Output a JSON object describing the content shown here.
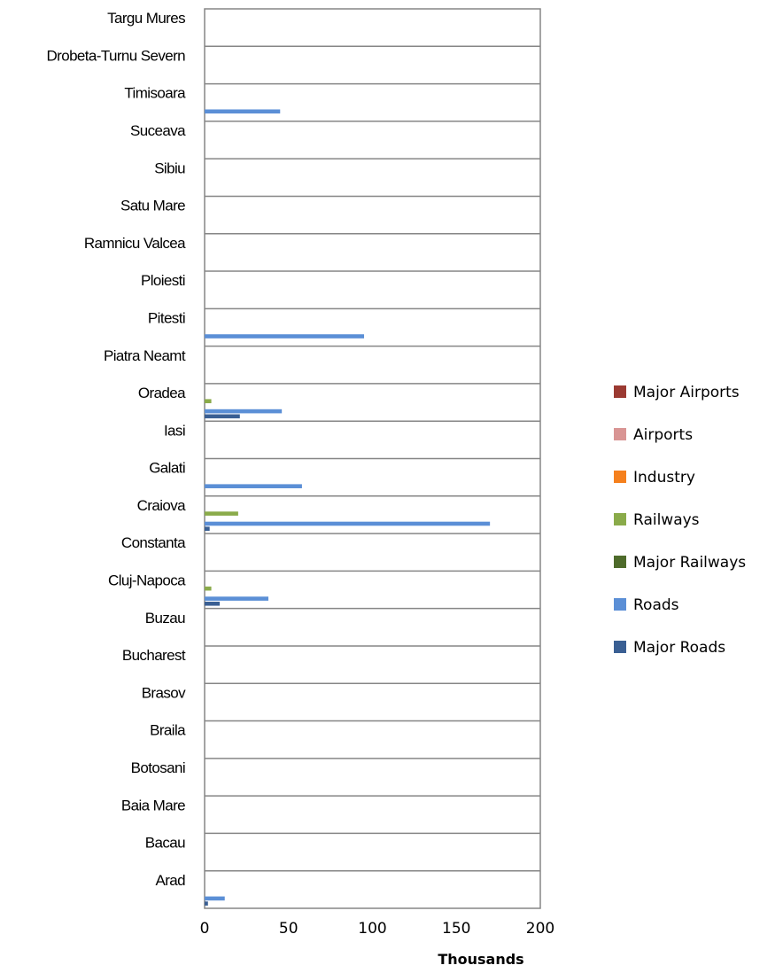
{
  "chart_data": {
    "type": "bar",
    "orientation": "horizontal",
    "title": "",
    "xlabel": "Thousands",
    "ylabel": "",
    "xlim": [
      0,
      200
    ],
    "x_ticks": [
      0,
      50,
      100,
      150,
      200
    ],
    "grid": "horizontal category separators",
    "legend_position": "right",
    "categories": [
      "Arad",
      "Bacau",
      "Baia Mare",
      "Botosani",
      "Braila",
      "Brasov",
      "Bucharest",
      "Buzau",
      "Cluj-Napoca",
      "Constanta",
      "Craiova",
      "Galati",
      "Iasi",
      "Oradea",
      "Piatra Neamt",
      "Pitesti",
      "Ploiesti",
      "Ramnicu Valcea",
      "Satu Mare",
      "Sibiu",
      "Suceava",
      "Timisoara",
      "Drobeta-Turnu Severn",
      "Targu Mures"
    ],
    "series": [
      {
        "name": "Major Roads",
        "color": "#3a5f93",
        "values": [
          2,
          0,
          0,
          0,
          0,
          0,
          0,
          0,
          9,
          0,
          3,
          0,
          0,
          21,
          0,
          0,
          0,
          0,
          0,
          0,
          0,
          0,
          0,
          0
        ]
      },
      {
        "name": "Roads",
        "color": "#5b8fd6",
        "values": [
          12,
          0,
          0,
          0,
          0,
          0,
          0,
          0,
          38,
          0,
          170,
          58,
          0,
          46,
          0,
          95,
          0,
          0,
          0,
          0,
          0,
          45,
          0,
          0
        ]
      },
      {
        "name": "Major Railways",
        "color": "#4e6b2b",
        "values": [
          0,
          0,
          0,
          0,
          0,
          0,
          0,
          0,
          0,
          0,
          0,
          0,
          0,
          0,
          0,
          0,
          0,
          0,
          0,
          0,
          0,
          0,
          0,
          0
        ]
      },
      {
        "name": "Railways",
        "color": "#8aab4a",
        "values": [
          0,
          0,
          0,
          0,
          0,
          0,
          0,
          0,
          4,
          0,
          20,
          0,
          0,
          4,
          0,
          0,
          0,
          0,
          0,
          0,
          0,
          0,
          0,
          0
        ]
      },
      {
        "name": "Industry",
        "color": "#f5801d",
        "values": [
          0,
          0,
          0,
          0,
          0,
          0,
          0,
          0,
          0,
          0,
          0,
          0,
          0,
          0,
          0,
          0,
          0,
          0,
          0,
          0,
          0,
          0,
          0,
          0
        ]
      },
      {
        "name": "Airports",
        "color": "#d99594",
        "values": [
          0,
          0,
          0,
          0,
          0,
          0,
          0,
          0,
          0,
          0,
          0,
          0,
          0,
          0,
          0,
          0,
          0,
          0,
          0,
          0,
          0,
          0,
          0,
          0
        ]
      },
      {
        "name": "Major Airports",
        "color": "#9b3a32",
        "values": [
          0,
          0,
          0,
          0,
          0,
          0,
          0,
          0,
          0,
          0,
          0,
          0,
          0,
          0,
          0,
          0,
          0,
          0,
          0,
          0,
          0,
          0,
          0,
          0
        ]
      }
    ],
    "legend_order": [
      "Major Airports",
      "Airports",
      "Industry",
      "Railways",
      "Major Railways",
      "Roads",
      "Major Roads"
    ]
  }
}
